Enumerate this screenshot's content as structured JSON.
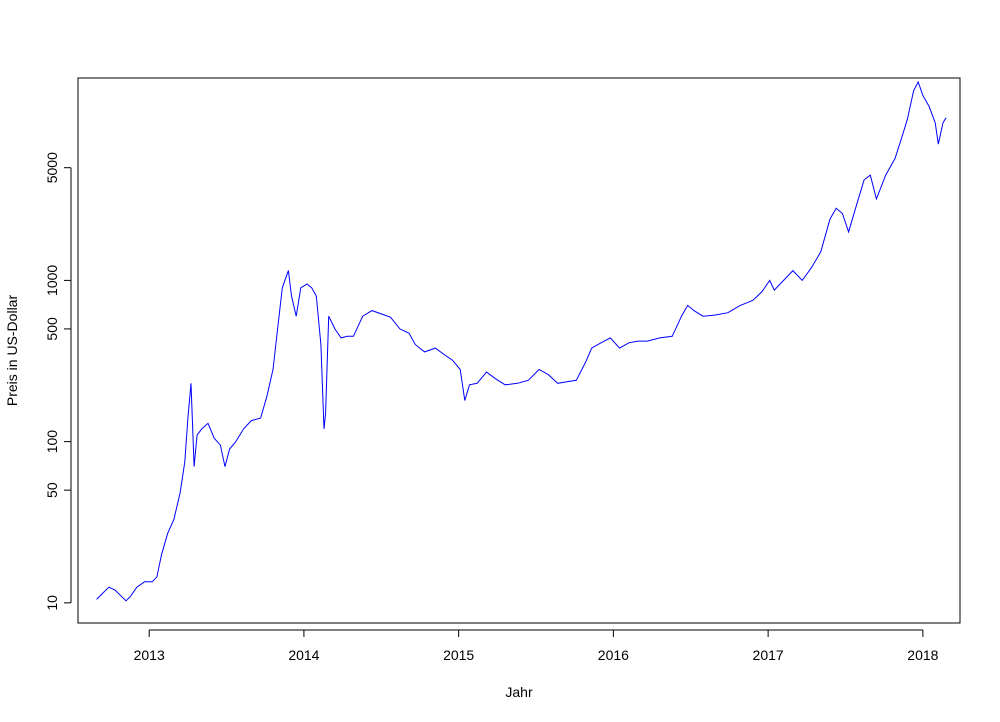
{
  "chart_data": {
    "type": "line",
    "title": "",
    "xlabel": "Jahr",
    "ylabel": "Preis in US-Dollar",
    "y_scale": "log",
    "x_ticks": [
      "2013",
      "2014",
      "2015",
      "2016",
      "2017",
      "2018"
    ],
    "y_ticks": [
      "10",
      "50",
      "100",
      "500",
      "1000",
      "5000"
    ],
    "xlim": [
      2012.54,
      2018.24
    ],
    "ylim": [
      7.5,
      18000
    ],
    "grid": false,
    "legend": "none",
    "line_color": "#0000ff",
    "series": [
      {
        "values": [
          [
            2012.66,
            10.5
          ],
          [
            2012.7,
            11.5
          ],
          [
            2012.74,
            12.5
          ],
          [
            2012.78,
            12.0
          ],
          [
            2012.82,
            11.0
          ],
          [
            2012.85,
            10.3
          ],
          [
            2012.88,
            11.0
          ],
          [
            2012.92,
            12.5
          ],
          [
            2012.97,
            13.5
          ],
          [
            2013.02,
            13.5
          ],
          [
            2013.05,
            14.5
          ],
          [
            2013.08,
            20
          ],
          [
            2013.12,
            27
          ],
          [
            2013.16,
            33
          ],
          [
            2013.2,
            48
          ],
          [
            2013.23,
            75
          ],
          [
            2013.25,
            140
          ],
          [
            2013.27,
            230
          ],
          [
            2013.28,
            130
          ],
          [
            2013.29,
            70
          ],
          [
            2013.31,
            110
          ],
          [
            2013.34,
            120
          ],
          [
            2013.38,
            130
          ],
          [
            2013.42,
            105
          ],
          [
            2013.46,
            95
          ],
          [
            2013.49,
            70
          ],
          [
            2013.52,
            90
          ],
          [
            2013.56,
            100
          ],
          [
            2013.61,
            120
          ],
          [
            2013.66,
            135
          ],
          [
            2013.72,
            140
          ],
          [
            2013.76,
            190
          ],
          [
            2013.8,
            280
          ],
          [
            2013.83,
            500
          ],
          [
            2013.86,
            900
          ],
          [
            2013.9,
            1150
          ],
          [
            2013.92,
            800
          ],
          [
            2013.95,
            600
          ],
          [
            2013.98,
            900
          ],
          [
            2014.02,
            950
          ],
          [
            2014.05,
            900
          ],
          [
            2014.08,
            800
          ],
          [
            2014.11,
            400
          ],
          [
            2014.13,
            120
          ],
          [
            2014.14,
            150
          ],
          [
            2014.16,
            600
          ],
          [
            2014.2,
            500
          ],
          [
            2014.24,
            440
          ],
          [
            2014.28,
            450
          ],
          [
            2014.32,
            450
          ],
          [
            2014.38,
            600
          ],
          [
            2014.44,
            650
          ],
          [
            2014.5,
            620
          ],
          [
            2014.56,
            590
          ],
          [
            2014.62,
            500
          ],
          [
            2014.68,
            470
          ],
          [
            2014.72,
            400
          ],
          [
            2014.78,
            360
          ],
          [
            2014.85,
            380
          ],
          [
            2014.9,
            350
          ],
          [
            2014.96,
            320
          ],
          [
            2015.01,
            280
          ],
          [
            2015.04,
            180
          ],
          [
            2015.07,
            225
          ],
          [
            2015.12,
            230
          ],
          [
            2015.18,
            270
          ],
          [
            2015.24,
            245
          ],
          [
            2015.3,
            225
          ],
          [
            2015.38,
            230
          ],
          [
            2015.45,
            240
          ],
          [
            2015.52,
            280
          ],
          [
            2015.58,
            260
          ],
          [
            2015.64,
            230
          ],
          [
            2015.7,
            235
          ],
          [
            2015.76,
            240
          ],
          [
            2015.82,
            310
          ],
          [
            2015.86,
            380
          ],
          [
            2015.92,
            410
          ],
          [
            2015.98,
            440
          ],
          [
            2016.04,
            380
          ],
          [
            2016.1,
            410
          ],
          [
            2016.16,
            420
          ],
          [
            2016.22,
            420
          ],
          [
            2016.3,
            440
          ],
          [
            2016.38,
            450
          ],
          [
            2016.44,
            600
          ],
          [
            2016.48,
            700
          ],
          [
            2016.52,
            650
          ],
          [
            2016.58,
            600
          ],
          [
            2016.66,
            610
          ],
          [
            2016.74,
            630
          ],
          [
            2016.82,
            700
          ],
          [
            2016.9,
            750
          ],
          [
            2016.96,
            850
          ],
          [
            2017.01,
            1000
          ],
          [
            2017.04,
            870
          ],
          [
            2017.1,
            1000
          ],
          [
            2017.16,
            1150
          ],
          [
            2017.22,
            1000
          ],
          [
            2017.28,
            1200
          ],
          [
            2017.34,
            1500
          ],
          [
            2017.4,
            2400
          ],
          [
            2017.44,
            2800
          ],
          [
            2017.48,
            2600
          ],
          [
            2017.52,
            2000
          ],
          [
            2017.56,
            2700
          ],
          [
            2017.62,
            4200
          ],
          [
            2017.66,
            4500
          ],
          [
            2017.7,
            3200
          ],
          [
            2017.76,
            4500
          ],
          [
            2017.82,
            5700
          ],
          [
            2017.86,
            7500
          ],
          [
            2017.9,
            10000
          ],
          [
            2017.94,
            15000
          ],
          [
            2017.97,
            17000
          ],
          [
            2018.0,
            14000
          ],
          [
            2018.04,
            12000
          ],
          [
            2018.08,
            9500
          ],
          [
            2018.1,
            7000
          ],
          [
            2018.13,
            9500
          ],
          [
            2018.15,
            10200
          ]
        ]
      }
    ]
  }
}
